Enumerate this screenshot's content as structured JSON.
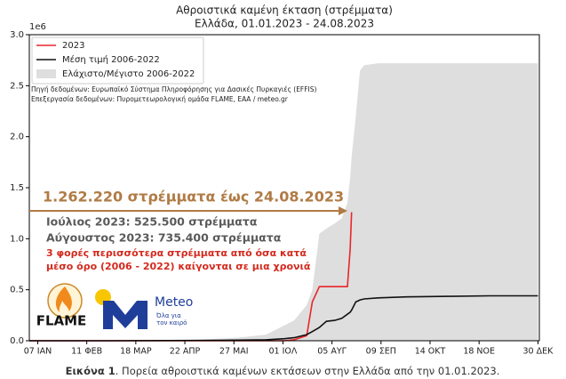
{
  "chart_data": {
    "type": "line",
    "title": "Αθροιστικά καμένη έκταση (στρέμματα)",
    "subtitle": "Ελλάδα, 01.01.2023 - 24.08.2023",
    "y_scale_label": "1e6",
    "x": [
      1,
      60,
      120,
      150,
      170,
      183,
      190,
      199,
      203,
      208,
      213,
      219,
      224,
      228,
      230,
      231,
      234,
      237,
      240,
      250,
      270,
      300,
      330,
      364
    ],
    "series": [
      {
        "name": "2023",
        "color": "#e8272a",
        "values": [
          0,
          0,
          0,
          0,
          0,
          0,
          0.01,
          0.05,
          0.38,
          0.53,
          0.53,
          0.53,
          0.53,
          0.53,
          0.9,
          1.26,
          null,
          null,
          null,
          null,
          null,
          null,
          null,
          null
        ]
      },
      {
        "name": "Μέση τιμή 2006-2022",
        "color": "#111111",
        "values": [
          0,
          0,
          0.003,
          0.006,
          0.01,
          0.02,
          0.03,
          0.06,
          0.09,
          0.13,
          0.19,
          0.2,
          0.22,
          0.26,
          0.28,
          0.3,
          0.38,
          0.4,
          0.41,
          0.42,
          0.43,
          0.435,
          0.44,
          0.44
        ]
      },
      {
        "name": "Ελάχιστο/Μέγιστο 2006-2022",
        "color": "#dedede",
        "values": [
          0,
          0.005,
          0.01,
          0.03,
          0.06,
          0.15,
          0.2,
          0.35,
          0.5,
          1.05,
          1.1,
          1.15,
          1.2,
          1.35,
          1.6,
          1.8,
          2.2,
          2.65,
          2.7,
          2.72,
          2.72,
          2.72,
          2.72,
          2.72
        ],
        "low": [
          0,
          0,
          0,
          0,
          0,
          0,
          0,
          0,
          0,
          0,
          0,
          0,
          0,
          0,
          0,
          0,
          0,
          0,
          0,
          0,
          0,
          0,
          0,
          0
        ]
      }
    ],
    "xlim": [
      1,
      365
    ],
    "xticks": [
      {
        "value": 7,
        "label": "07 ΙΑΝ"
      },
      {
        "value": 42,
        "label": "11 ΦΕΒ"
      },
      {
        "value": 77,
        "label": "18 ΜΑΡ"
      },
      {
        "value": 112,
        "label": "22 ΑΠΡ"
      },
      {
        "value": 147,
        "label": "27 ΜΑΙ"
      },
      {
        "value": 182,
        "label": "01 ΙΟΛ"
      },
      {
        "value": 217,
        "label": "05 ΑΥΓ"
      },
      {
        "value": 252,
        "label": "09 ΣΕΠ"
      },
      {
        "value": 287,
        "label": "14 ΟΚΤ"
      },
      {
        "value": 322,
        "label": "18 ΝΟΕ"
      },
      {
        "value": 364,
        "label": "30 ΔΕΚ"
      }
    ],
    "ylim": [
      0,
      3
    ],
    "yticks": [
      {
        "value": 0,
        "label": "0.0"
      },
      {
        "value": 0.5,
        "label": "0.5"
      },
      {
        "value": 1,
        "label": "1.0"
      },
      {
        "value": 1.5,
        "label": "1.5"
      },
      {
        "value": 2,
        "label": "2.0"
      },
      {
        "value": 2.5,
        "label": "2.5"
      },
      {
        "value": 3,
        "label": "3.0"
      }
    ],
    "legend": "upper left",
    "sources": [
      "Πηγή δεδομένων: Ευρωπαϊκό Σύστημα Πληροφόρησης για Δασικές Πυρκαγιές (EFFIS)",
      "Επεξεργασία δεδομένων: Πυρομετεωρολογική ομάδα FLAME, ΕΑΑ / meteo.gr"
    ],
    "annotations": [
      {
        "text": "1.262.220 στρέμματα έως 24.08.2023",
        "color": "#b07b45"
      },
      {
        "text": "Ιούλιος 2023: 525.500 στρέμματα",
        "color": "#5a5a5a"
      },
      {
        "text": "Αύγουστος 2023: 735.400 στρέμματα",
        "color": "#5a5a5a"
      },
      {
        "text": "3 φορές περισσότερα στρέμματα από όσα κατά",
        "color": "#d42a1e"
      },
      {
        "text": "μέσο όρο (2006 - 2022) καίγονται σε μια χρονιά",
        "color": "#d42a1e"
      }
    ]
  },
  "logos": {
    "flame": "FLAME",
    "meteo": "Meteo",
    "meteo_tagline": [
      "Όλα για",
      "τον καιρό"
    ]
  },
  "caption": {
    "label": "Εικόνα 1",
    "text": ". Πορεία αθροιστικά καμένων εκτάσεων στην Ελλάδα από την 01.01.2023."
  }
}
